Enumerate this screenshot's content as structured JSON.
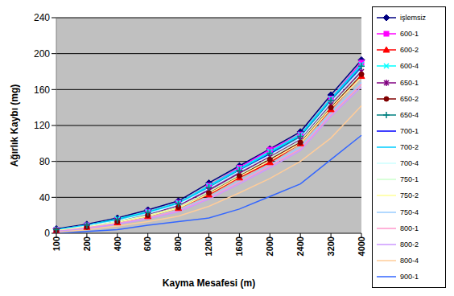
{
  "chart_data": {
    "type": "line",
    "x_label": "Kayma Mesafesi (m)",
    "y_label": "Ağırlık Kaybı (mg)",
    "categories": [
      100,
      200,
      400,
      600,
      800,
      1200,
      1600,
      2000,
      2400,
      3200,
      4000
    ],
    "ylim": [
      0,
      240
    ],
    "yticks": [
      0,
      40,
      80,
      120,
      160,
      200,
      240
    ],
    "grid": true,
    "legend": "right",
    "series": [
      {
        "name": "işlemsiz",
        "color": "#000080",
        "marker": "diamond",
        "values": [
          5,
          10,
          17,
          26,
          36,
          56,
          75,
          94,
          113,
          154,
          193
        ]
      },
      {
        "name": "600-1",
        "color": "#FF00FF",
        "marker": "square",
        "values": [
          4,
          9,
          15,
          24,
          34,
          53,
          73,
          93,
          110,
          150,
          190
        ]
      },
      {
        "name": "600-2",
        "color": "#FF0000",
        "marker": "triangle",
        "values": [
          3,
          7,
          12,
          19,
          28,
          43,
          62,
          79,
          100,
          138,
          175
        ]
      },
      {
        "name": "600-4",
        "color": "#00FFFF",
        "marker": "x",
        "values": [
          4,
          9,
          16,
          24,
          34,
          53,
          72,
          91,
          110,
          150,
          188
        ]
      },
      {
        "name": "650-1",
        "color": "#800080",
        "marker": "star",
        "values": [
          3,
          8,
          14,
          21,
          31,
          48,
          67,
          85,
          104,
          143,
          180
        ]
      },
      {
        "name": "650-2",
        "color": "#800000",
        "marker": "circle",
        "values": [
          3,
          7,
          13,
          20,
          29,
          45,
          64,
          82,
          101,
          140,
          177
        ]
      },
      {
        "name": "650-4",
        "color": "#008080",
        "marker": "plus",
        "values": [
          4,
          9,
          15,
          23,
          33,
          51,
          70,
          89,
          108,
          148,
          186
        ]
      },
      {
        "name": "700-1",
        "color": "#0000FF",
        "marker": "none",
        "values": [
          3,
          8,
          14,
          22,
          32,
          50,
          69,
          88,
          106,
          146,
          184
        ]
      },
      {
        "name": "700-2",
        "color": "#00CCFF",
        "marker": "none",
        "values": [
          4,
          9,
          15,
          23,
          33,
          52,
          71,
          90,
          109,
          149,
          187
        ]
      },
      {
        "name": "700-4",
        "color": "#CCFFFF",
        "marker": "none",
        "values": [
          3,
          8,
          14,
          22,
          32,
          50,
          69,
          87,
          106,
          146,
          183
        ]
      },
      {
        "name": "750-1",
        "color": "#CCFFCC",
        "marker": "none",
        "values": [
          3,
          7,
          13,
          20,
          29,
          46,
          65,
          84,
          103,
          142,
          178
        ]
      },
      {
        "name": "750-2",
        "color": "#FFFF99",
        "marker": "none",
        "values": [
          3,
          7,
          12,
          19,
          28,
          44,
          63,
          81,
          100,
          139,
          174
        ]
      },
      {
        "name": "750-4",
        "color": "#99CCFF",
        "marker": "none",
        "values": [
          2,
          6,
          11,
          17,
          26,
          40,
          58,
          76,
          96,
          134,
          168
        ]
      },
      {
        "name": "800-1",
        "color": "#FF99CC",
        "marker": "none",
        "values": [
          2,
          6,
          11,
          17,
          25,
          39,
          57,
          75,
          94,
          132,
          166
        ]
      },
      {
        "name": "800-2",
        "color": "#CC99FF",
        "marker": "none",
        "values": [
          2,
          5,
          10,
          16,
          24,
          38,
          55,
          73,
          92,
          130,
          163
        ]
      },
      {
        "name": "800-4",
        "color": "#FFCC99",
        "marker": "none",
        "values": [
          1,
          4,
          8,
          13,
          19,
          30,
          45,
          61,
          80,
          106,
          142
        ]
      },
      {
        "name": "900-1",
        "color": "#3366FF",
        "marker": "none",
        "values": [
          0,
          2,
          4,
          9,
          13,
          17,
          27,
          41,
          55,
          82,
          109
        ]
      }
    ]
  }
}
